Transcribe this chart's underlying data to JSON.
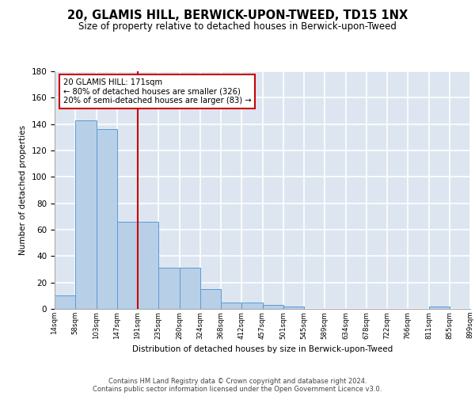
{
  "title": "20, GLAMIS HILL, BERWICK-UPON-TWEED, TD15 1NX",
  "subtitle": "Size of property relative to detached houses in Berwick-upon-Tweed",
  "xlabel": "Distribution of detached houses by size in Berwick-upon-Tweed",
  "ylabel": "Number of detached properties",
  "bar_values": [
    10,
    143,
    136,
    66,
    66,
    31,
    31,
    15,
    5,
    5,
    3,
    2,
    0,
    0,
    0,
    0,
    0,
    0,
    2,
    0
  ],
  "tick_labels": [
    "14sqm",
    "58sqm",
    "103sqm",
    "147sqm",
    "191sqm",
    "235sqm",
    "280sqm",
    "324sqm",
    "368sqm",
    "412sqm",
    "457sqm",
    "501sqm",
    "545sqm",
    "589sqm",
    "634sqm",
    "678sqm",
    "722sqm",
    "766sqm",
    "811sqm",
    "855sqm",
    "899sqm"
  ],
  "bar_color": "#b8cfe8",
  "bar_edge_color": "#5b9bd5",
  "vline_x": 3.5,
  "vline_color": "#cc0000",
  "annotation_text": "20 GLAMIS HILL: 171sqm\n← 80% of detached houses are smaller (326)\n20% of semi-detached houses are larger (83) →",
  "annotation_box_color": "#cc0000",
  "ylim": [
    0,
    180
  ],
  "yticks": [
    0,
    20,
    40,
    60,
    80,
    100,
    120,
    140,
    160,
    180
  ],
  "bg_color": "#dde6f0",
  "grid_color": "#ffffff",
  "footer": "Contains HM Land Registry data © Crown copyright and database right 2024.\nContains public sector information licensed under the Open Government Licence v3.0."
}
